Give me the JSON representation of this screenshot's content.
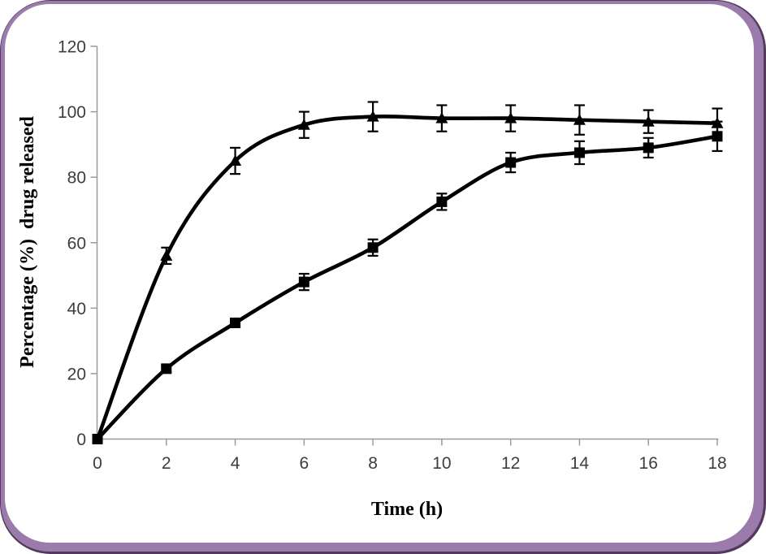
{
  "window": {
    "background": "#ffffff"
  },
  "frame": {
    "outline_color": "#533a5d",
    "band_color": "#9b7bab",
    "inner_background": "#ffffff"
  },
  "chart_data": {
    "type": "line",
    "title": "",
    "xlabel": "Time (h)",
    "ylabel": "Percentage (%)  drug released",
    "xlim": [
      0,
      18
    ],
    "ylim": [
      0,
      120
    ],
    "xticks": [
      0,
      2,
      4,
      6,
      8,
      10,
      12,
      14,
      16,
      18
    ],
    "yticks": [
      0,
      20,
      40,
      60,
      80,
      100,
      120
    ],
    "grid": false,
    "legend": "none",
    "axis_color": "#9a9a9a",
    "tick_label_color": "#3d3d3d",
    "x": [
      0,
      2,
      4,
      6,
      8,
      10,
      12,
      14,
      16,
      18
    ],
    "series": [
      {
        "name": "fast-release-triangle-series",
        "marker": "triangle",
        "first_marker": false,
        "color": "#000000",
        "values": [
          0,
          56,
          85,
          96,
          98.5,
          98,
          98,
          97.5,
          97,
          96.5
        ],
        "errors": [
          0,
          2.5,
          4,
          4,
          4.5,
          4,
          4,
          4.5,
          3.5,
          4.5
        ]
      },
      {
        "name": "sustained-release-square-series",
        "marker": "square",
        "first_marker": true,
        "color": "#000000",
        "values": [
          0,
          21.5,
          35.5,
          48,
          58.5,
          72.5,
          84.5,
          87.5,
          89,
          92.5
        ],
        "errors": [
          0,
          1,
          1,
          2.5,
          2.5,
          2.5,
          3,
          3.5,
          3,
          4.5
        ]
      }
    ]
  }
}
